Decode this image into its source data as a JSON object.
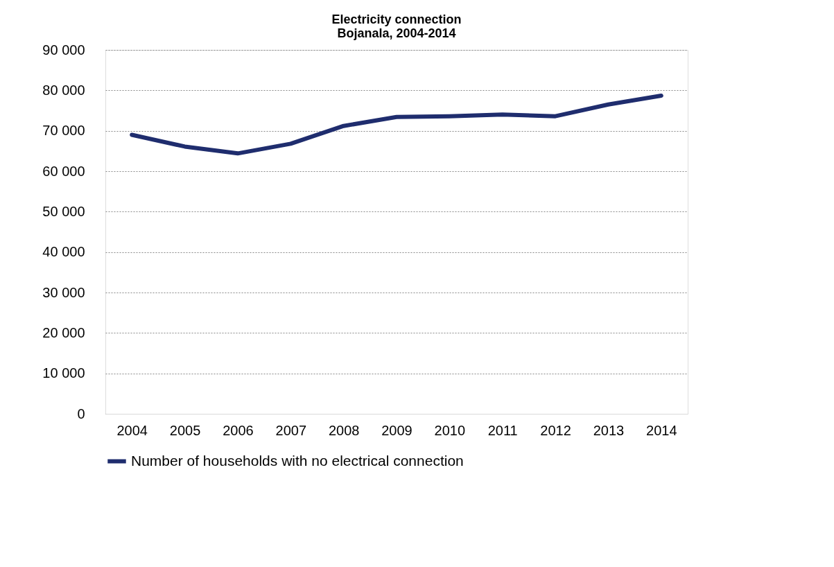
{
  "chart_data": {
    "type": "line",
    "title": [
      "Electricity connection",
      "Bojanala, 2004-2014"
    ],
    "categories": [
      "2004",
      "2005",
      "2006",
      "2007",
      "2008",
      "2009",
      "2010",
      "2011",
      "2012",
      "2013",
      "2014"
    ],
    "series": [
      {
        "name": "Number of households with no electrical connection",
        "color": "#1f2d6e",
        "values": [
          69000,
          66100,
          64400,
          66800,
          71200,
          73400,
          73600,
          74000,
          73600,
          76500,
          78700
        ]
      }
    ],
    "ylim": [
      0,
      90000
    ],
    "yticks": [
      {
        "value": 0,
        "label": "0"
      },
      {
        "value": 10000,
        "label": "10 000"
      },
      {
        "value": 20000,
        "label": "20 000"
      },
      {
        "value": 30000,
        "label": "30 000"
      },
      {
        "value": 40000,
        "label": "40 000"
      },
      {
        "value": 50000,
        "label": "50 000"
      },
      {
        "value": 60000,
        "label": "60 000"
      },
      {
        "value": 70000,
        "label": "70 000"
      },
      {
        "value": 80000,
        "label": "80 000"
      },
      {
        "value": 90000,
        "label": "90 000"
      }
    ],
    "grid": "y",
    "legend": "bottom",
    "marker": "none",
    "line_style": "solid"
  }
}
